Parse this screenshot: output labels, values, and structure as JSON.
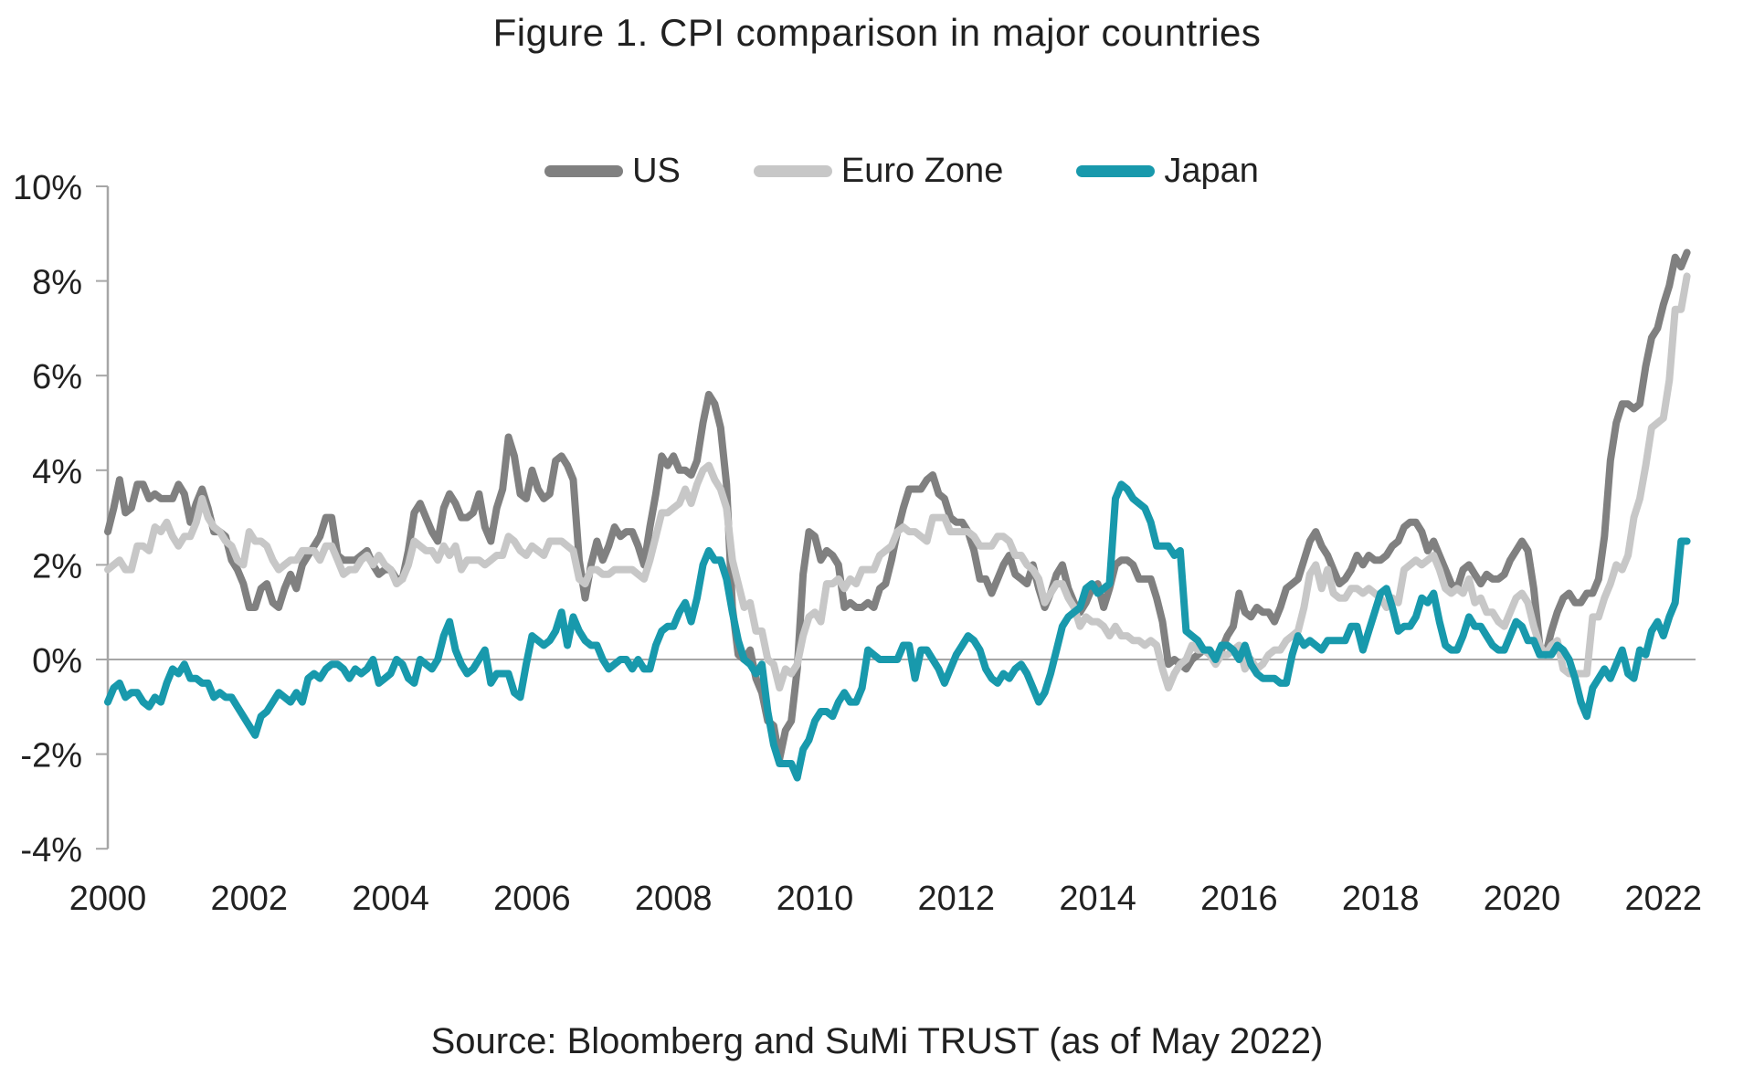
{
  "title": "Figure 1. CPI comparison in major countries",
  "source_note": "Source: Bloomberg and SuMi TRUST (as of May 2022)",
  "colors": {
    "us_line": "#808080",
    "euro_zone_line": "#c7c7c7",
    "japan_line": "#1899ac",
    "axis": "#a6a6a6",
    "text": "#212121",
    "background": "#ffffff"
  },
  "chart_data": {
    "type": "line",
    "title": "Figure 1. CPI comparison in major countries",
    "frequency": "monthly",
    "x_start": "2000-01",
    "x_end": "2022-05",
    "xlabel": "",
    "ylabel": "",
    "ylim": [
      -4,
      10
    ],
    "xlim": [
      2000,
      2022.5
    ],
    "grid": "zero-line-only",
    "legend_position": "top-center",
    "axis_color": "#a6a6a6",
    "y_tick_labels": [
      "10%",
      "8%",
      "6%",
      "4%",
      "2%",
      "0%",
      "-2%",
      "-4%"
    ],
    "y_tick_values": [
      10,
      8,
      6,
      4,
      2,
      0,
      -2,
      -4
    ],
    "x_tick_labels": [
      "2000",
      "2002",
      "2004",
      "2006",
      "2008",
      "2010",
      "2012",
      "2014",
      "2016",
      "2018",
      "2020",
      "2022"
    ],
    "series": [
      {
        "name": "US",
        "color": "#808080",
        "values": [
          2.7,
          3.2,
          3.8,
          3.1,
          3.2,
          3.7,
          3.7,
          3.4,
          3.5,
          3.4,
          3.4,
          3.4,
          3.7,
          3.5,
          2.9,
          3.3,
          3.6,
          3.2,
          2.7,
          2.7,
          2.6,
          2.1,
          1.9,
          1.6,
          1.1,
          1.1,
          1.5,
          1.6,
          1.2,
          1.1,
          1.5,
          1.8,
          1.5,
          2.0,
          2.2,
          2.4,
          2.6,
          3.0,
          3.0,
          2.2,
          2.1,
          2.1,
          2.1,
          2.2,
          2.3,
          2.0,
          1.8,
          1.9,
          1.9,
          1.7,
          1.7,
          2.3,
          3.1,
          3.3,
          3.0,
          2.7,
          2.5,
          3.2,
          3.5,
          3.3,
          3.0,
          3.0,
          3.1,
          3.5,
          2.8,
          2.5,
          3.2,
          3.6,
          4.7,
          4.3,
          3.5,
          3.4,
          4.0,
          3.6,
          3.4,
          3.5,
          4.2,
          4.3,
          4.1,
          3.8,
          2.1,
          1.3,
          2.0,
          2.5,
          2.1,
          2.4,
          2.8,
          2.6,
          2.7,
          2.7,
          2.4,
          2.0,
          2.8,
          3.5,
          4.3,
          4.1,
          4.3,
          4.0,
          4.0,
          3.9,
          4.2,
          5.0,
          5.6,
          5.4,
          4.9,
          3.7,
          1.1,
          0.1,
          0.0,
          0.2,
          -0.4,
          -0.7,
          -1.3,
          -1.4,
          -2.1,
          -1.5,
          -1.3,
          -0.2,
          1.8,
          2.7,
          2.6,
          2.1,
          2.3,
          2.2,
          2.0,
          1.1,
          1.2,
          1.1,
          1.1,
          1.2,
          1.1,
          1.5,
          1.6,
          2.1,
          2.7,
          3.2,
          3.6,
          3.6,
          3.6,
          3.8,
          3.9,
          3.5,
          3.4,
          3.0,
          2.9,
          2.9,
          2.7,
          2.3,
          1.7,
          1.7,
          1.4,
          1.7,
          2.0,
          2.2,
          1.8,
          1.7,
          1.6,
          2.0,
          1.5,
          1.1,
          1.4,
          1.8,
          2.0,
          1.5,
          1.2,
          1.0,
          1.2,
          1.5,
          1.6,
          1.1,
          1.5,
          2.0,
          2.1,
          2.1,
          2.0,
          1.7,
          1.7,
          1.7,
          1.3,
          0.8,
          -0.1,
          0.0,
          -0.1,
          -0.2,
          0.0,
          0.1,
          0.2,
          0.2,
          0.0,
          0.2,
          0.5,
          0.7,
          1.4,
          1.0,
          0.9,
          1.1,
          1.0,
          1.0,
          0.8,
          1.1,
          1.5,
          1.6,
          1.7,
          2.1,
          2.5,
          2.7,
          2.4,
          2.2,
          1.9,
          1.6,
          1.7,
          1.9,
          2.2,
          2.0,
          2.2,
          2.1,
          2.1,
          2.2,
          2.4,
          2.5,
          2.8,
          2.9,
          2.9,
          2.7,
          2.3,
          2.5,
          2.2,
          1.9,
          1.6,
          1.5,
          1.9,
          2.0,
          1.8,
          1.6,
          1.8,
          1.7,
          1.7,
          1.8,
          2.1,
          2.3,
          2.5,
          2.3,
          1.5,
          0.3,
          0.1,
          0.6,
          1.0,
          1.3,
          1.4,
          1.2,
          1.2,
          1.4,
          1.4,
          1.7,
          2.6,
          4.2,
          5.0,
          5.4,
          5.4,
          5.3,
          5.4,
          6.2,
          6.8,
          7.0,
          7.5,
          7.9,
          8.5,
          8.3,
          8.6
        ]
      },
      {
        "name": "Euro Zone",
        "color": "#c7c7c7",
        "values": [
          1.9,
          2.0,
          2.1,
          1.9,
          1.9,
          2.4,
          2.4,
          2.3,
          2.8,
          2.7,
          2.9,
          2.6,
          2.4,
          2.6,
          2.6,
          2.9,
          3.4,
          3.0,
          2.8,
          2.7,
          2.5,
          2.4,
          2.1,
          2.0,
          2.7,
          2.5,
          2.5,
          2.4,
          2.1,
          1.9,
          2.0,
          2.1,
          2.1,
          2.3,
          2.3,
          2.3,
          2.1,
          2.4,
          2.4,
          2.1,
          1.8,
          1.9,
          1.9,
          2.1,
          2.2,
          2.0,
          2.2,
          2.0,
          1.9,
          1.6,
          1.7,
          2.0,
          2.5,
          2.4,
          2.3,
          2.3,
          2.1,
          2.4,
          2.2,
          2.4,
          1.9,
          2.1,
          2.1,
          2.1,
          2.0,
          2.1,
          2.2,
          2.2,
          2.6,
          2.5,
          2.3,
          2.2,
          2.4,
          2.3,
          2.2,
          2.5,
          2.5,
          2.5,
          2.4,
          2.3,
          1.7,
          1.6,
          1.9,
          1.9,
          1.8,
          1.8,
          1.9,
          1.9,
          1.9,
          1.9,
          1.8,
          1.7,
          2.1,
          2.6,
          3.1,
          3.1,
          3.2,
          3.3,
          3.6,
          3.3,
          3.7,
          4.0,
          4.1,
          3.8,
          3.6,
          3.2,
          2.1,
          1.6,
          1.1,
          1.2,
          0.6,
          0.6,
          0.0,
          -0.1,
          -0.6,
          -0.2,
          -0.3,
          -0.1,
          0.5,
          0.9,
          1.0,
          0.8,
          1.6,
          1.6,
          1.7,
          1.5,
          1.7,
          1.6,
          1.9,
          1.9,
          1.9,
          2.2,
          2.3,
          2.4,
          2.7,
          2.8,
          2.7,
          2.7,
          2.6,
          2.5,
          3.0,
          3.0,
          3.0,
          2.7,
          2.7,
          2.7,
          2.7,
          2.6,
          2.4,
          2.4,
          2.4,
          2.6,
          2.6,
          2.5,
          2.2,
          2.2,
          2.0,
          1.9,
          1.7,
          1.2,
          1.4,
          1.6,
          1.6,
          1.3,
          1.1,
          0.7,
          0.9,
          0.8,
          0.8,
          0.7,
          0.5,
          0.7,
          0.5,
          0.5,
          0.4,
          0.4,
          0.3,
          0.4,
          0.3,
          -0.2,
          -0.6,
          -0.3,
          -0.1,
          0.0,
          0.3,
          0.2,
          0.2,
          0.1,
          -0.1,
          0.1,
          0.1,
          0.2,
          0.3,
          -0.2,
          0.0,
          -0.2,
          -0.1,
          0.1,
          0.2,
          0.2,
          0.4,
          0.5,
          0.6,
          1.1,
          1.8,
          2.0,
          1.5,
          1.9,
          1.4,
          1.3,
          1.3,
          1.5,
          1.5,
          1.4,
          1.5,
          1.4,
          1.3,
          1.1,
          1.3,
          1.2,
          1.9,
          2.0,
          2.1,
          2.0,
          2.1,
          2.2,
          1.9,
          1.5,
          1.4,
          1.5,
          1.4,
          1.7,
          1.2,
          1.3,
          1.0,
          1.0,
          0.8,
          0.7,
          1.0,
          1.3,
          1.4,
          1.2,
          0.7,
          0.3,
          0.1,
          0.3,
          0.4,
          -0.2,
          -0.3,
          -0.3,
          -0.3,
          -0.3,
          0.9,
          0.9,
          1.3,
          1.6,
          2.0,
          1.9,
          2.2,
          3.0,
          3.4,
          4.1,
          4.9,
          5.0,
          5.1,
          5.9,
          7.4,
          7.4,
          8.1
        ]
      },
      {
        "name": "Japan",
        "color": "#1899ac",
        "values": [
          -0.9,
          -0.6,
          -0.5,
          -0.8,
          -0.7,
          -0.7,
          -0.9,
          -1.0,
          -0.8,
          -0.9,
          -0.5,
          -0.2,
          -0.3,
          -0.1,
          -0.4,
          -0.4,
          -0.5,
          -0.5,
          -0.8,
          -0.7,
          -0.8,
          -0.8,
          -1.0,
          -1.2,
          -1.4,
          -1.6,
          -1.2,
          -1.1,
          -0.9,
          -0.7,
          -0.8,
          -0.9,
          -0.7,
          -0.9,
          -0.4,
          -0.3,
          -0.4,
          -0.2,
          -0.1,
          -0.1,
          -0.2,
          -0.4,
          -0.2,
          -0.3,
          -0.2,
          0.0,
          -0.5,
          -0.4,
          -0.3,
          0.0,
          -0.1,
          -0.4,
          -0.5,
          0.0,
          -0.1,
          -0.2,
          0.0,
          0.5,
          0.8,
          0.2,
          -0.1,
          -0.3,
          -0.2,
          0.0,
          0.2,
          -0.5,
          -0.3,
          -0.3,
          -0.3,
          -0.7,
          -0.8,
          -0.1,
          0.5,
          0.4,
          0.3,
          0.4,
          0.6,
          1.0,
          0.3,
          0.9,
          0.6,
          0.4,
          0.3,
          0.3,
          0.0,
          -0.2,
          -0.1,
          0.0,
          0.0,
          -0.2,
          0.0,
          -0.2,
          -0.2,
          0.3,
          0.6,
          0.7,
          0.7,
          1.0,
          1.2,
          0.8,
          1.3,
          2.0,
          2.3,
          2.1,
          2.1,
          1.7,
          1.0,
          0.4,
          0.0,
          -0.1,
          -0.3,
          -0.1,
          -1.1,
          -1.8,
          -2.2,
          -2.2,
          -2.2,
          -2.5,
          -1.9,
          -1.7,
          -1.3,
          -1.1,
          -1.1,
          -1.2,
          -0.9,
          -0.7,
          -0.9,
          -0.9,
          -0.6,
          0.2,
          0.1,
          0.0,
          0.0,
          0.0,
          0.0,
          0.3,
          0.3,
          -0.4,
          0.2,
          0.2,
          0.0,
          -0.2,
          -0.5,
          -0.2,
          0.1,
          0.3,
          0.5,
          0.4,
          0.2,
          -0.2,
          -0.4,
          -0.5,
          -0.3,
          -0.4,
          -0.2,
          -0.1,
          -0.3,
          -0.6,
          -0.9,
          -0.7,
          -0.3,
          0.2,
          0.7,
          0.9,
          1.0,
          1.1,
          1.5,
          1.6,
          1.4,
          1.5,
          1.6,
          3.4,
          3.7,
          3.6,
          3.4,
          3.3,
          3.2,
          2.9,
          2.4,
          2.4,
          2.4,
          2.2,
          2.3,
          0.6,
          0.5,
          0.4,
          0.2,
          0.2,
          0.0,
          0.3,
          0.3,
          0.2,
          0.0,
          0.3,
          -0.1,
          -0.3,
          -0.4,
          -0.4,
          -0.4,
          -0.5,
          -0.5,
          0.1,
          0.5,
          0.3,
          0.4,
          0.3,
          0.2,
          0.4,
          0.4,
          0.4,
          0.4,
          0.7,
          0.7,
          0.2,
          0.6,
          1.0,
          1.4,
          1.5,
          1.1,
          0.6,
          0.7,
          0.7,
          0.9,
          1.3,
          1.2,
          1.4,
          0.8,
          0.3,
          0.2,
          0.2,
          0.5,
          0.9,
          0.7,
          0.7,
          0.5,
          0.3,
          0.2,
          0.2,
          0.5,
          0.8,
          0.7,
          0.4,
          0.4,
          0.1,
          0.1,
          0.1,
          0.3,
          0.2,
          0.0,
          -0.4,
          -0.9,
          -1.2,
          -0.6,
          -0.4,
          -0.2,
          -0.4,
          -0.1,
          0.2,
          -0.3,
          -0.4,
          0.2,
          0.1,
          0.6,
          0.8,
          0.5,
          0.9,
          1.2,
          2.5,
          2.5
        ]
      }
    ]
  }
}
